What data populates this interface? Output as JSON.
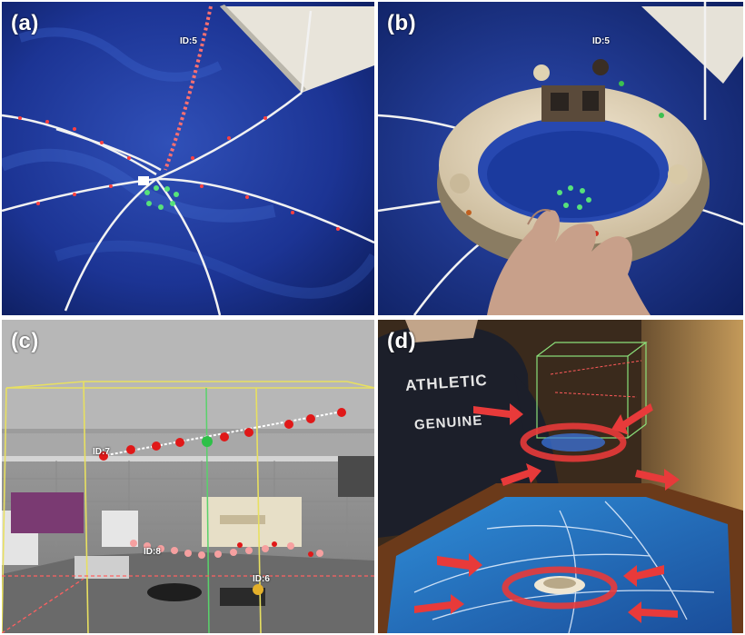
{
  "panels": [
    {
      "label": "(a)",
      "id_tag": "ID:5"
    },
    {
      "label": "(b)",
      "id_tag": "ID:5"
    },
    {
      "label": "(c)",
      "id_tags": [
        "ID:7",
        "ID:8",
        "ID:6"
      ]
    },
    {
      "label": "(d)",
      "shirt_text": [
        "ATHLETIC",
        "GENUINE"
      ]
    }
  ]
}
